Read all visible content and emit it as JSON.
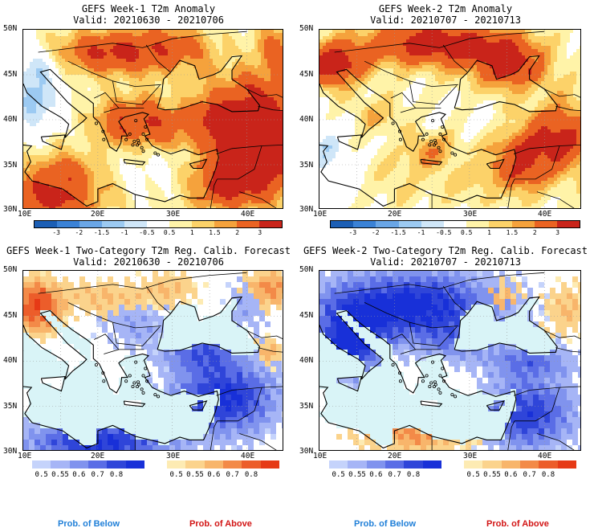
{
  "panels": [
    {
      "title": "GEFS Week-1 T2m Anomaly",
      "valid": "Valid: 20210630 - 20210706",
      "kind": "anomaly",
      "scheme": 1
    },
    {
      "title": "GEFS Week-2 T2m Anomaly",
      "valid": "Valid: 20210707 - 20210713",
      "kind": "anomaly",
      "scheme": 2
    },
    {
      "title": "GEFS Week-1 Two-Category T2m Reg. Calib. Forecast",
      "valid": "Valid: 20210630 - 20210706",
      "kind": "prob",
      "scheme": 3
    },
    {
      "title": "GEFS Week-2 Two-Category T2m Reg. Calib. Forecast",
      "valid": "Valid: 20210707 - 20210713",
      "kind": "prob",
      "scheme": 4
    }
  ],
  "lat_ticks": [
    "50N",
    "45N",
    "40N",
    "35N",
    "30N"
  ],
  "lon_ticks": [
    "10E",
    "20E",
    "30E",
    "40E"
  ],
  "anomaly_colorbar": {
    "labels": [
      "-3",
      "-2",
      "-1.5",
      "-1",
      "-0.5",
      "0.5",
      "1",
      "1.5",
      "2",
      "3"
    ],
    "colors": [
      "#1c5fb5",
      "#3b82d6",
      "#6aa6e6",
      "#9ccaf2",
      "#cfe6f8",
      "#ffffff",
      "#fff3a8",
      "#fcd269",
      "#f5a23c",
      "#ea6322",
      "#c9241a"
    ]
  },
  "prob_colorbar_below": {
    "labels": [
      "0.5",
      "0.55",
      "0.6",
      "0.7",
      "0.8"
    ],
    "colors": [
      "#c5d3fb",
      "#a6b5f6",
      "#8093ee",
      "#5a6de6",
      "#2f45d9",
      "#1830d8"
    ]
  },
  "prob_colorbar_above": {
    "labels": [
      "0.5",
      "0.55",
      "0.6",
      "0.7",
      "0.8"
    ],
    "colors": [
      "#fdebb3",
      "#fbd38c",
      "#f8b56b",
      "#f38a48",
      "#ec5d2a",
      "#e63a16"
    ]
  },
  "footer": {
    "below_left": "Prob. of Below",
    "above_left": "Prob. of Above",
    "below_right": "Prob. of Below",
    "above_right": "Prob. of Above"
  },
  "colors": {
    "sea_light": "#d9f4f7",
    "grid": "#999999"
  }
}
